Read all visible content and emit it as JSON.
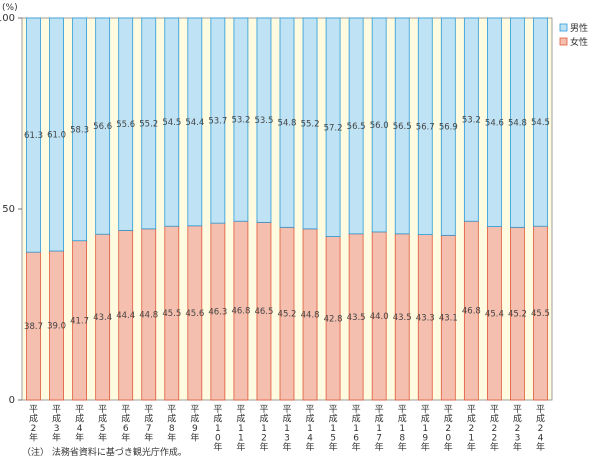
{
  "chart_data": {
    "type": "bar",
    "stacked": true,
    "unit_label": "(%)",
    "y_ticks": [
      "0",
      "50",
      "100"
    ],
    "ylim": [
      0,
      100
    ],
    "categories": [
      "平成2年",
      "平成3年",
      "平成4年",
      "平成5年",
      "平成6年",
      "平成7年",
      "平成8年",
      "平成9年",
      "平成10年",
      "平成11年",
      "平成12年",
      "平成13年",
      "平成14年",
      "平成15年",
      "平成16年",
      "平成17年",
      "平成18年",
      "平成19年",
      "平成20年",
      "平成21年",
      "平成22年",
      "平成23年",
      "平成24年"
    ],
    "series": [
      {
        "name": "女性",
        "color": "#f4bfae",
        "values": [
          38.7,
          39.0,
          41.7,
          43.4,
          44.4,
          44.8,
          45.5,
          45.6,
          46.3,
          46.8,
          46.5,
          45.2,
          44.8,
          42.8,
          43.5,
          44.0,
          43.5,
          43.3,
          43.1,
          46.8,
          45.4,
          45.2,
          45.5
        ],
        "labels": [
          "38.7",
          "39.0",
          "41.7",
          "43.4",
          "44.4",
          "44.8",
          "45.5",
          "45.6",
          "46.3",
          "46.8",
          "46.5",
          "45.2",
          "44.8",
          "42.8",
          "43.5",
          "44.0",
          "43.5",
          "43.3",
          "43.1",
          "46.8",
          "45.4",
          "45.2",
          "45.5"
        ]
      },
      {
        "name": "男性",
        "color": "#bfe3f5",
        "values": [
          61.3,
          61.0,
          58.3,
          56.6,
          55.6,
          55.2,
          54.5,
          54.4,
          53.7,
          53.2,
          53.5,
          54.8,
          55.2,
          57.2,
          56.5,
          56.0,
          56.5,
          56.7,
          56.9,
          53.2,
          54.6,
          54.8,
          54.5
        ],
        "labels": [
          "61.3",
          "61.0",
          "58.3",
          "56.6",
          "55.6",
          "55.2",
          "54.5",
          "54.4",
          "53.7",
          "53.2",
          "53.5",
          "54.8",
          "55.2",
          "57.2",
          "56.5",
          "56.0",
          "56.5",
          "56.7",
          "56.9",
          "53.2",
          "54.6",
          "54.8",
          "54.5"
        ]
      }
    ],
    "legend": {
      "position": "top-right",
      "items": [
        "男性",
        "女性"
      ]
    },
    "note": "（注） 法務省資料に基づき観光庁作成。",
    "colors": {
      "plot_bg": "#fffbe0",
      "female_fill": "#f4bfae",
      "female_edge": "#e0593a",
      "male_fill": "#bfe3f5",
      "male_edge": "#2a9bd8"
    }
  }
}
